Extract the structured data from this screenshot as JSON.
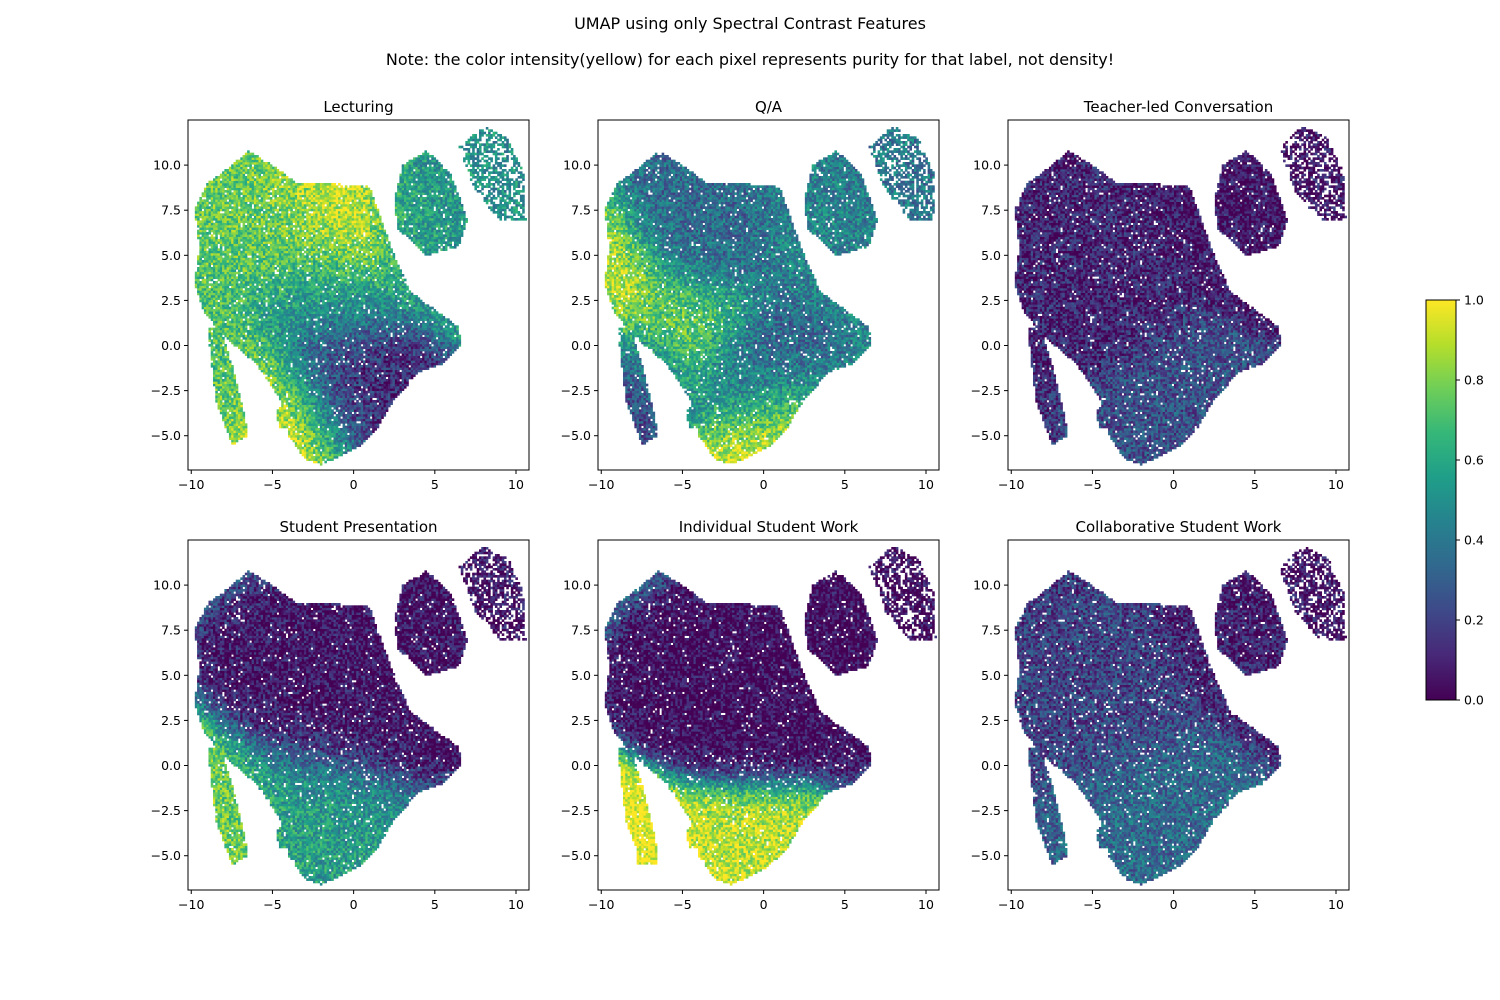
{
  "figure": {
    "title": "UMAP using only Spectral Contrast Features",
    "note": "Note: the color intensity(yellow) for each pixel represents purity for that label, not density!"
  },
  "chart_data": [
    {
      "type": "heatmap",
      "title": "Lecturing",
      "xlim": [
        -10.2,
        10.8
      ],
      "ylim": [
        -6.9,
        12.5
      ],
      "xticks": [
        -10,
        -5,
        0,
        5,
        10
      ],
      "xtick_labels": [
        "−10",
        "−5",
        "0",
        "5",
        "10"
      ],
      "yticks": [
        -5,
        -2.5,
        0,
        2.5,
        5,
        7.5,
        10
      ],
      "ytick_labels": [
        "−5.0",
        "−2.5",
        "0.0",
        "2.5",
        "5.0",
        "7.5",
        "10.0"
      ],
      "grid": false,
      "purity_regions": [
        {
          "region": "upper-main-cluster",
          "center": [
            -4,
            6
          ],
          "purity": 0.75
        },
        {
          "region": "upper-center",
          "center": [
            -1,
            7
          ],
          "purity": 0.95
        },
        {
          "region": "middle",
          "center": [
            -2,
            2.5
          ],
          "purity": 0.5
        },
        {
          "region": "lower-main-cluster",
          "center": [
            -1,
            -2
          ],
          "purity": 0.1
        },
        {
          "region": "left-strip",
          "center": [
            -8.2,
            -2
          ],
          "purity": 0.7
        },
        {
          "region": "small-blob",
          "center": [
            -4.3,
            -4
          ],
          "purity": 1.0
        },
        {
          "region": "right-cluster",
          "center": [
            4.5,
            7
          ],
          "purity": 0.55
        },
        {
          "region": "far-right-cluster",
          "center": [
            8,
            9
          ],
          "purity": 0.5
        }
      ]
    },
    {
      "type": "heatmap",
      "title": "Q/A",
      "xlim": [
        -10.2,
        10.8
      ],
      "ylim": [
        -6.9,
        12.5
      ],
      "xticks": [
        -10,
        -5,
        0,
        5,
        10
      ],
      "xtick_labels": [
        "−10",
        "−5",
        "0",
        "5",
        "10"
      ],
      "yticks": [
        -5,
        -2.5,
        0,
        2.5,
        5,
        7.5,
        10
      ],
      "ytick_labels": [
        "−5.0",
        "−2.5",
        "0.0",
        "2.5",
        "5.0",
        "7.5",
        "10.0"
      ],
      "grid": false,
      "purity_regions": [
        {
          "region": "upper-main-cluster",
          "center": [
            -4,
            6
          ],
          "purity": 0.35
        },
        {
          "region": "left-edge",
          "center": [
            -9.5,
            2.5
          ],
          "purity": 0.9
        },
        {
          "region": "middle-band",
          "center": [
            -5,
            0.5
          ],
          "purity": 0.8
        },
        {
          "region": "lower-main-cluster",
          "center": [
            -1,
            -2
          ],
          "purity": 0.3
        },
        {
          "region": "bottom-edge",
          "center": [
            -0.5,
            -5.3
          ],
          "purity": 1.0
        },
        {
          "region": "left-strip",
          "center": [
            -8.2,
            -2
          ],
          "purity": 0.2
        },
        {
          "region": "right-cluster",
          "center": [
            4.5,
            7
          ],
          "purity": 0.45
        },
        {
          "region": "far-right-cluster",
          "center": [
            8,
            9
          ],
          "purity": 0.4
        }
      ]
    },
    {
      "type": "heatmap",
      "title": "Teacher-led Conversation",
      "xlim": [
        -10.2,
        10.8
      ],
      "ylim": [
        -6.9,
        12.5
      ],
      "xticks": [
        -10,
        -5,
        0,
        5,
        10
      ],
      "xtick_labels": [
        "−10",
        "−5",
        "0",
        "5",
        "10"
      ],
      "yticks": [
        -5,
        -2.5,
        0,
        2.5,
        5,
        7.5,
        10
      ],
      "ytick_labels": [
        "−5.0",
        "−2.5",
        "0.0",
        "2.5",
        "5.0",
        "7.5",
        "10.0"
      ],
      "grid": false,
      "purity_regions": [
        {
          "region": "main-cluster",
          "center": [
            -3,
            3
          ],
          "purity": 0.1
        },
        {
          "region": "lower-band",
          "center": [
            0,
            -2.5
          ],
          "purity": 0.25
        },
        {
          "region": "right-cluster",
          "center": [
            4.5,
            7
          ],
          "purity": 0.05
        },
        {
          "region": "far-right-cluster",
          "center": [
            8,
            9
          ],
          "purity": 0.05
        }
      ]
    },
    {
      "type": "heatmap",
      "title": "Student Presentation",
      "xlim": [
        -10.2,
        10.8
      ],
      "ylim": [
        -6.9,
        12.5
      ],
      "xticks": [
        -10,
        -5,
        0,
        5,
        10
      ],
      "xtick_labels": [
        "−10",
        "−5",
        "0",
        "5",
        "10"
      ],
      "yticks": [
        -5,
        -2.5,
        0,
        2.5,
        5,
        7.5,
        10
      ],
      "ytick_labels": [
        "−5.0",
        "−2.5",
        "0.0",
        "2.5",
        "5.0",
        "7.5",
        "10.0"
      ],
      "grid": false,
      "purity_regions": [
        {
          "region": "main-cluster",
          "center": [
            -3,
            3
          ],
          "purity": 0.05
        },
        {
          "region": "lower-left-band",
          "center": [
            -4,
            -2
          ],
          "purity": 0.55
        },
        {
          "region": "left-strip",
          "center": [
            -8.2,
            -3
          ],
          "purity": 0.8
        },
        {
          "region": "right-cluster",
          "center": [
            4.5,
            7
          ],
          "purity": 0.05
        },
        {
          "region": "far-right-cluster",
          "center": [
            8,
            9
          ],
          "purity": 0.05
        }
      ]
    },
    {
      "type": "heatmap",
      "title": "Individual Student Work",
      "xlim": [
        -10.2,
        10.8
      ],
      "ylim": [
        -6.9,
        12.5
      ],
      "xticks": [
        -10,
        -5,
        0,
        5,
        10
      ],
      "xtick_labels": [
        "−10",
        "−5",
        "0",
        "5",
        "10"
      ],
      "yticks": [
        -5,
        -2.5,
        0,
        2.5,
        5,
        7.5,
        10
      ],
      "ytick_labels": [
        "−5.0",
        "−2.5",
        "0.0",
        "2.5",
        "5.0",
        "7.5",
        "10.0"
      ],
      "grid": false,
      "purity_regions": [
        {
          "region": "main-cluster",
          "center": [
            -3,
            3
          ],
          "purity": 0.02
        },
        {
          "region": "small-blob",
          "center": [
            -7.2,
            -5.1
          ],
          "purity": 1.0
        },
        {
          "region": "bottom-tip",
          "center": [
            -3,
            -5
          ],
          "purity": 0.9
        },
        {
          "region": "right-cluster",
          "center": [
            4.5,
            7
          ],
          "purity": 0.02
        },
        {
          "region": "far-right-cluster",
          "center": [
            8,
            9
          ],
          "purity": 0.02
        }
      ]
    },
    {
      "type": "heatmap",
      "title": "Collaborative Student Work",
      "xlim": [
        -10.2,
        10.8
      ],
      "ylim": [
        -6.9,
        12.5
      ],
      "xticks": [
        -10,
        -5,
        0,
        5,
        10
      ],
      "xtick_labels": [
        "−10",
        "−5",
        "0",
        "5",
        "10"
      ],
      "yticks": [
        -5,
        -2.5,
        0,
        2.5,
        5,
        7.5,
        10
      ],
      "ytick_labels": [
        "−5.0",
        "−2.5",
        "0.0",
        "2.5",
        "5.0",
        "7.5",
        "10.0"
      ],
      "grid": false,
      "purity_regions": [
        {
          "region": "main-cluster",
          "center": [
            -3,
            3
          ],
          "purity": 0.2
        },
        {
          "region": "lower-band",
          "center": [
            -1,
            -1.5
          ],
          "purity": 0.35
        },
        {
          "region": "right-cluster",
          "center": [
            4.5,
            7
          ],
          "purity": 0.1
        },
        {
          "region": "far-right-cluster",
          "center": [
            8,
            9
          ],
          "purity": 0.05
        }
      ]
    }
  ],
  "colorbar": {
    "colormap": "viridis",
    "range": [
      0.0,
      1.0
    ],
    "ticks": [
      0.0,
      0.2,
      0.4,
      0.6,
      0.8,
      1.0
    ],
    "tick_labels": [
      "0.0",
      "0.2",
      "0.4",
      "0.6",
      "0.8",
      "1.0"
    ],
    "stops": [
      "#440154",
      "#482878",
      "#3e4989",
      "#31688e",
      "#26828e",
      "#1f9e89",
      "#35b779",
      "#6ece58",
      "#b5de2b",
      "#fde725"
    ]
  }
}
